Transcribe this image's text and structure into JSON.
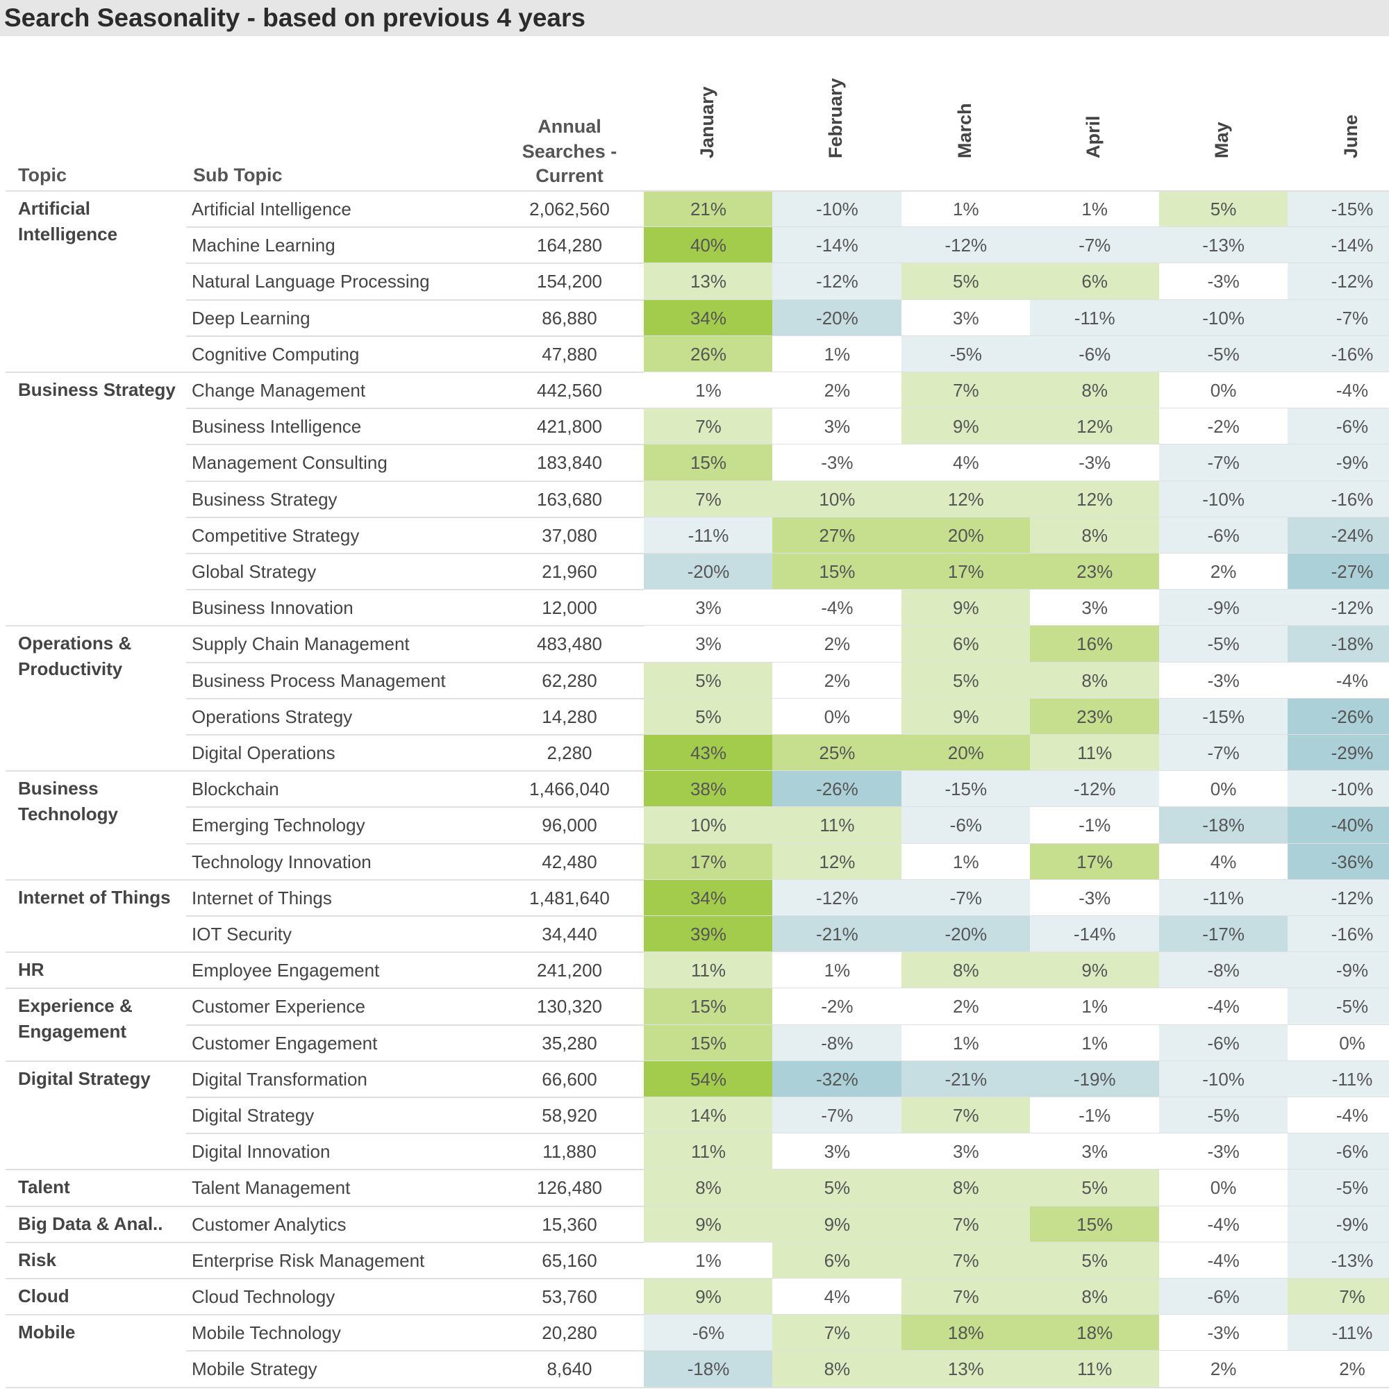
{
  "title": "Search Seasonality - based on previous 4 years",
  "headers": {
    "topic": "Topic",
    "sub_topic": "Sub Topic",
    "annual": [
      "Annual",
      "Searches -",
      "Current"
    ]
  },
  "colors": {
    "title_bg": "#e6e6e6",
    "strong_green": "#a3cc4d",
    "medium_green": "#c5df8e",
    "light_green": "#dcebc0",
    "white": "#ffffff",
    "light_blue": "#e5eff1",
    "medium_blue": "#c6dde2",
    "strong_blue": "#acd0d8"
  },
  "chart_data": {
    "type": "table",
    "title": "Search Seasonality - based on previous 4 years",
    "columns": [
      "Topic",
      "Sub Topic",
      "Annual Searches - Current",
      "January",
      "February",
      "March",
      "April",
      "May",
      "June"
    ],
    "months": [
      "January",
      "February",
      "March",
      "April",
      "May",
      "June"
    ],
    "groups": [
      {
        "topic": "Artificial Intelligence",
        "rows": [
          {
            "sub": "Artificial Intelligence",
            "annual": "2,062,560",
            "values": [
              21,
              -10,
              1,
              1,
              5,
              -15
            ]
          },
          {
            "sub": "Machine Learning",
            "annual": "164,280",
            "values": [
              40,
              -14,
              -12,
              -7,
              -13,
              -14
            ]
          },
          {
            "sub": "Natural Language Processing",
            "annual": "154,200",
            "values": [
              13,
              -12,
              5,
              6,
              -3,
              -12
            ]
          },
          {
            "sub": "Deep Learning",
            "annual": "86,880",
            "values": [
              34,
              -20,
              3,
              -11,
              -10,
              -7
            ]
          },
          {
            "sub": "Cognitive Computing",
            "annual": "47,880",
            "values": [
              26,
              1,
              -5,
              -6,
              -5,
              -16
            ]
          }
        ]
      },
      {
        "topic": "Business Strategy",
        "rows": [
          {
            "sub": "Change Management",
            "annual": "442,560",
            "values": [
              1,
              2,
              7,
              8,
              0,
              -4
            ]
          },
          {
            "sub": "Business Intelligence",
            "annual": "421,800",
            "values": [
              7,
              3,
              9,
              12,
              -2,
              -6
            ]
          },
          {
            "sub": "Management Consulting",
            "annual": "183,840",
            "values": [
              15,
              -3,
              4,
              -3,
              -7,
              -9
            ]
          },
          {
            "sub": "Business Strategy",
            "annual": "163,680",
            "values": [
              7,
              10,
              12,
              12,
              -10,
              -16
            ]
          },
          {
            "sub": "Competitive Strategy",
            "annual": "37,080",
            "values": [
              -11,
              27,
              20,
              8,
              -6,
              -24
            ]
          },
          {
            "sub": "Global Strategy",
            "annual": "21,960",
            "values": [
              -20,
              15,
              17,
              23,
              2,
              -27
            ]
          },
          {
            "sub": "Business Innovation",
            "annual": "12,000",
            "values": [
              3,
              -4,
              9,
              3,
              -9,
              -12
            ]
          }
        ]
      },
      {
        "topic": "Operations & Productivity",
        "rows": [
          {
            "sub": "Supply Chain Management",
            "annual": "483,480",
            "values": [
              3,
              2,
              6,
              16,
              -5,
              -18
            ]
          },
          {
            "sub": "Business Process Management",
            "annual": "62,280",
            "values": [
              5,
              2,
              5,
              8,
              -3,
              -4
            ]
          },
          {
            "sub": "Operations Strategy",
            "annual": "14,280",
            "values": [
              5,
              0,
              9,
              23,
              -15,
              -26
            ]
          },
          {
            "sub": "Digital Operations",
            "annual": "2,280",
            "values": [
              43,
              25,
              20,
              11,
              -7,
              -29
            ]
          }
        ]
      },
      {
        "topic": "Business Technology",
        "rows": [
          {
            "sub": "Blockchain",
            "annual": "1,466,040",
            "values": [
              38,
              -26,
              -15,
              -12,
              0,
              -10
            ]
          },
          {
            "sub": "Emerging Technology",
            "annual": "96,000",
            "values": [
              10,
              11,
              -6,
              -1,
              -18,
              -40
            ]
          },
          {
            "sub": "Technology Innovation",
            "annual": "42,480",
            "values": [
              17,
              12,
              1,
              17,
              4,
              -36
            ]
          }
        ]
      },
      {
        "topic": "Internet of Things",
        "rows": [
          {
            "sub": "Internet of Things",
            "annual": "1,481,640",
            "values": [
              34,
              -12,
              -7,
              -3,
              -11,
              -12
            ]
          },
          {
            "sub": "IOT Security",
            "annual": "34,440",
            "values": [
              39,
              -21,
              -20,
              -14,
              -17,
              -16
            ]
          }
        ]
      },
      {
        "topic": "HR",
        "rows": [
          {
            "sub": "Employee Engagement",
            "annual": "241,200",
            "values": [
              11,
              1,
              8,
              9,
              -8,
              -9
            ]
          }
        ]
      },
      {
        "topic": "Experience & Engagement",
        "rows": [
          {
            "sub": "Customer Experience",
            "annual": "130,320",
            "values": [
              15,
              -2,
              2,
              1,
              -4,
              -5
            ]
          },
          {
            "sub": "Customer Engagement",
            "annual": "35,280",
            "values": [
              15,
              -8,
              1,
              1,
              -6,
              0
            ]
          }
        ]
      },
      {
        "topic": "Digital Strategy",
        "rows": [
          {
            "sub": "Digital Transformation",
            "annual": "66,600",
            "values": [
              54,
              -32,
              -21,
              -19,
              -10,
              -11
            ]
          },
          {
            "sub": "Digital Strategy",
            "annual": "58,920",
            "values": [
              14,
              -7,
              7,
              -1,
              -5,
              -4
            ]
          },
          {
            "sub": "Digital Innovation",
            "annual": "11,880",
            "values": [
              11,
              3,
              3,
              3,
              -3,
              -6
            ]
          }
        ]
      },
      {
        "topic": "Talent",
        "rows": [
          {
            "sub": "Talent Management",
            "annual": "126,480",
            "values": [
              8,
              5,
              8,
              5,
              0,
              -5
            ]
          }
        ]
      },
      {
        "topic": "Big Data & Anal..",
        "rows": [
          {
            "sub": "Customer Analytics",
            "annual": "15,360",
            "values": [
              9,
              9,
              7,
              15,
              -4,
              -9
            ]
          }
        ]
      },
      {
        "topic": "Risk",
        "rows": [
          {
            "sub": "Enterprise Risk Management",
            "annual": "65,160",
            "values": [
              1,
              6,
              7,
              5,
              -4,
              -13
            ]
          }
        ]
      },
      {
        "topic": "Cloud",
        "rows": [
          {
            "sub": "Cloud Technology",
            "annual": "53,760",
            "values": [
              9,
              4,
              7,
              8,
              -6,
              7
            ]
          }
        ]
      },
      {
        "topic": "Mobile",
        "rows": [
          {
            "sub": "Mobile Technology",
            "annual": "20,280",
            "values": [
              -6,
              7,
              18,
              18,
              -3,
              -11
            ]
          },
          {
            "sub": "Mobile Strategy",
            "annual": "8,640",
            "values": [
              -18,
              8,
              13,
              11,
              2,
              2
            ]
          }
        ]
      }
    ]
  }
}
